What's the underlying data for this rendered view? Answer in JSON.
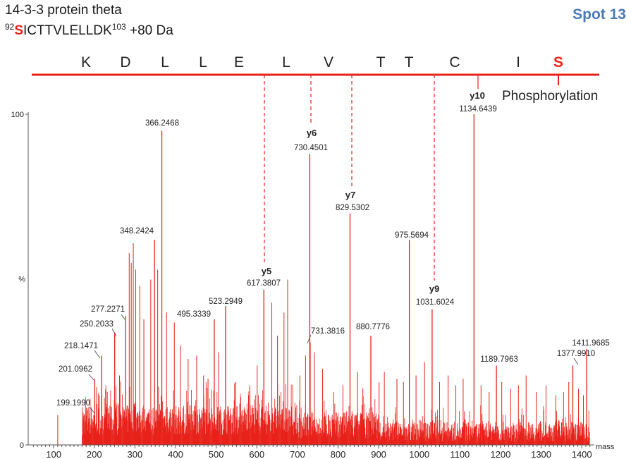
{
  "header": {
    "protein_name": "14-3-3 protein theta",
    "seq_start": "92",
    "seq_mod_residue": "S",
    "seq_rest": "ICTTVLELLDK",
    "seq_end": "103",
    "seq_mass_shift": "+80 Da",
    "spot_label": "Spot 13"
  },
  "sequence_bar": {
    "residues": [
      "K",
      "D",
      "L",
      "L",
      "E",
      "L",
      "V",
      "T",
      "T",
      "C",
      "I",
      "S"
    ],
    "modified_index": 11,
    "modification_label": "Phosphorylation"
  },
  "chart_data": {
    "type": "bar",
    "title": "",
    "xlabel": "mass",
    "ylabel": "%",
    "xlim": [
      40,
      1420
    ],
    "ylim": [
      0,
      100
    ],
    "x_ticks": [
      100,
      200,
      300,
      400,
      500,
      600,
      700,
      800,
      900,
      1000,
      1100,
      1200,
      1300,
      1400
    ],
    "y_ticks": [
      0,
      100
    ],
    "colors": {
      "peaks": "#e8221b",
      "text": "#222222",
      "accent": "#4a7ab5"
    },
    "labeled_peaks": [
      {
        "mz": 199.199,
        "intensity": 9,
        "label": "199.1990"
      },
      {
        "mz": 201.0962,
        "intensity": 20,
        "label": "201.0962"
      },
      {
        "mz": 218.1471,
        "intensity": 27,
        "label": "218.1471"
      },
      {
        "mz": 250.2033,
        "intensity": 34,
        "label": "250.2033"
      },
      {
        "mz": 277.2271,
        "intensity": 39,
        "label": "277.2271"
      },
      {
        "mz": 348.2424,
        "intensity": 62,
        "label": "348.2424"
      },
      {
        "mz": 366.2468,
        "intensity": 95,
        "label": "366.2468"
      },
      {
        "mz": 495.3339,
        "intensity": 38,
        "label": "495.3339"
      },
      {
        "mz": 523.2949,
        "intensity": 42,
        "label": "523.2949"
      },
      {
        "mz": 617.3807,
        "intensity": 47,
        "label": "617.3807",
        "ion": "y5"
      },
      {
        "mz": 730.4501,
        "intensity": 88,
        "label": "730.4501",
        "ion": "y6"
      },
      {
        "mz": 731.3816,
        "intensity": 31,
        "label": "731.3816"
      },
      {
        "mz": 829.5302,
        "intensity": 70,
        "label": "829.5302",
        "ion": "y7"
      },
      {
        "mz": 880.7776,
        "intensity": 33,
        "label": "880.7776"
      },
      {
        "mz": 975.5694,
        "intensity": 62,
        "label": "975.5694"
      },
      {
        "mz": 1031.6024,
        "intensity": 41,
        "label": "1031.6024",
        "ion": "y9"
      },
      {
        "mz": 1134.6439,
        "intensity": 100,
        "label": "1134.6439",
        "ion": "y10"
      },
      {
        "mz": 1189.7963,
        "intensity": 24,
        "label": "1189.7963"
      },
      {
        "mz": 1377.991,
        "intensity": 24,
        "label": "1377.9910"
      },
      {
        "mz": 1411.9685,
        "intensity": 29,
        "label": "1411.9685"
      }
    ],
    "other_peaks": [
      [
        110,
        9
      ],
      [
        175,
        9
      ],
      [
        186,
        8
      ],
      [
        193,
        8
      ],
      [
        212,
        15
      ],
      [
        232,
        16
      ],
      [
        262,
        21
      ],
      [
        286,
        58
      ],
      [
        291,
        55
      ],
      [
        296,
        61
      ],
      [
        302,
        53
      ],
      [
        312,
        48
      ],
      [
        322,
        38
      ],
      [
        339,
        50
      ],
      [
        356,
        53
      ],
      [
        378,
        40
      ],
      [
        397,
        37
      ],
      [
        412,
        30
      ],
      [
        431,
        26
      ],
      [
        452,
        27
      ],
      [
        469,
        21
      ],
      [
        480,
        20
      ],
      [
        506,
        28
      ],
      [
        548,
        19
      ],
      [
        583,
        18
      ],
      [
        601,
        24
      ],
      [
        637,
        43
      ],
      [
        651,
        33
      ],
      [
        667,
        40
      ],
      [
        676,
        50
      ],
      [
        706,
        21
      ],
      [
        720,
        27
      ],
      [
        742,
        28
      ],
      [
        762,
        23
      ],
      [
        789,
        16
      ],
      [
        812,
        18
      ],
      [
        848,
        22
      ],
      [
        861,
        17
      ],
      [
        901,
        19
      ],
      [
        914,
        22
      ],
      [
        945,
        20
      ],
      [
        961,
        19
      ],
      [
        992,
        21
      ],
      [
        1013,
        25
      ],
      [
        1050,
        19
      ],
      [
        1071,
        21
      ],
      [
        1090,
        18
      ],
      [
        1108,
        20
      ],
      [
        1152,
        18
      ],
      [
        1172,
        16
      ],
      [
        1203,
        19
      ],
      [
        1225,
        17
      ],
      [
        1244,
        18
      ],
      [
        1263,
        21
      ],
      [
        1288,
        16
      ],
      [
        1312,
        18
      ],
      [
        1336,
        15
      ],
      [
        1355,
        16
      ],
      [
        1368,
        19
      ],
      [
        1392,
        17
      ],
      [
        1404,
        15
      ]
    ]
  }
}
